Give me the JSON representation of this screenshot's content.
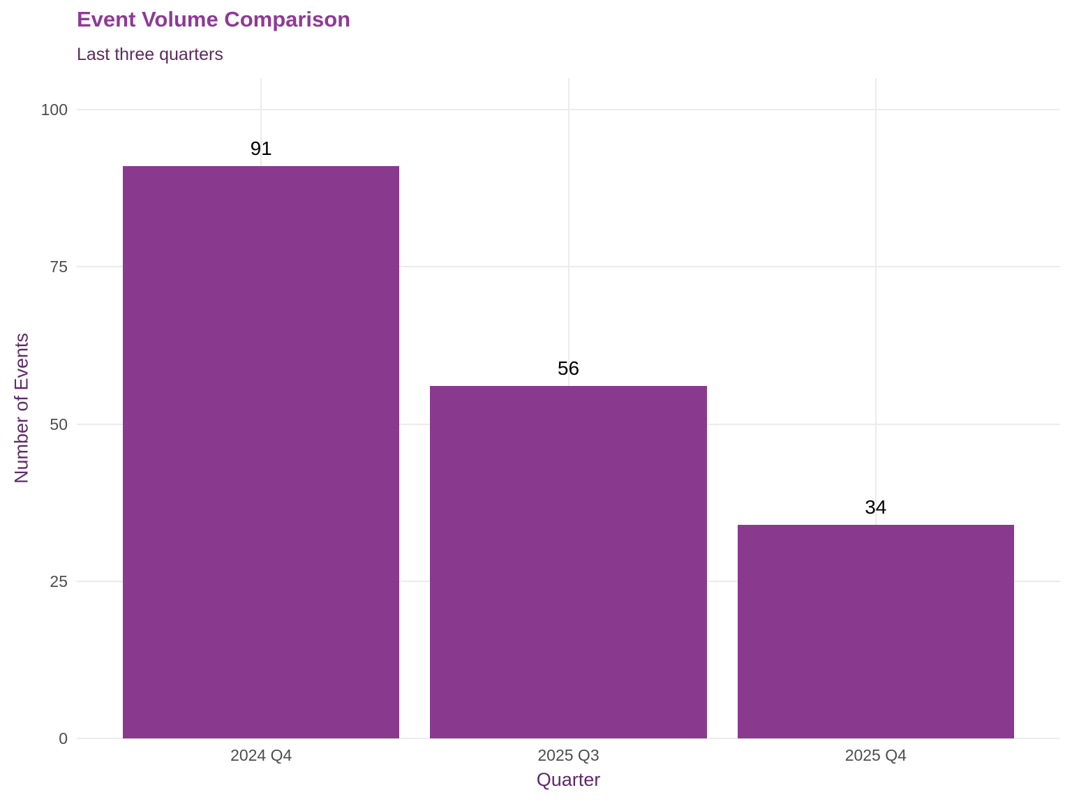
{
  "header": {
    "title": "Event Volume Comparison",
    "subtitle": "Last three quarters"
  },
  "chart_data": {
    "type": "bar",
    "categories": [
      "2024 Q4",
      "2025 Q3",
      "2025 Q4"
    ],
    "values": [
      91,
      56,
      34
    ],
    "data_labels": [
      "91",
      "56",
      "34"
    ],
    "title": "Event Volume Comparison",
    "subtitle": "Last three quarters",
    "xlabel": "Quarter",
    "ylabel": "Number of Events",
    "yticks": [
      0,
      25,
      50,
      75,
      100
    ],
    "ytick_labels": [
      "0",
      "25",
      "50",
      "75",
      "100"
    ],
    "ylim": [
      0,
      105
    ],
    "bar_width_fraction": 0.9,
    "grid": "major-horizontal plus vertical line at each category center",
    "legend_position": "none",
    "colors": {
      "bar": "#8A3A8E",
      "title": "#8E3A96",
      "subtitle": "#5C2B5E",
      "axis_title": "#5F2A68",
      "tick_label": "#4D4D4D",
      "gridline": "#EBEBEB",
      "data_label": "#000000",
      "background": "#FFFFFF"
    }
  }
}
